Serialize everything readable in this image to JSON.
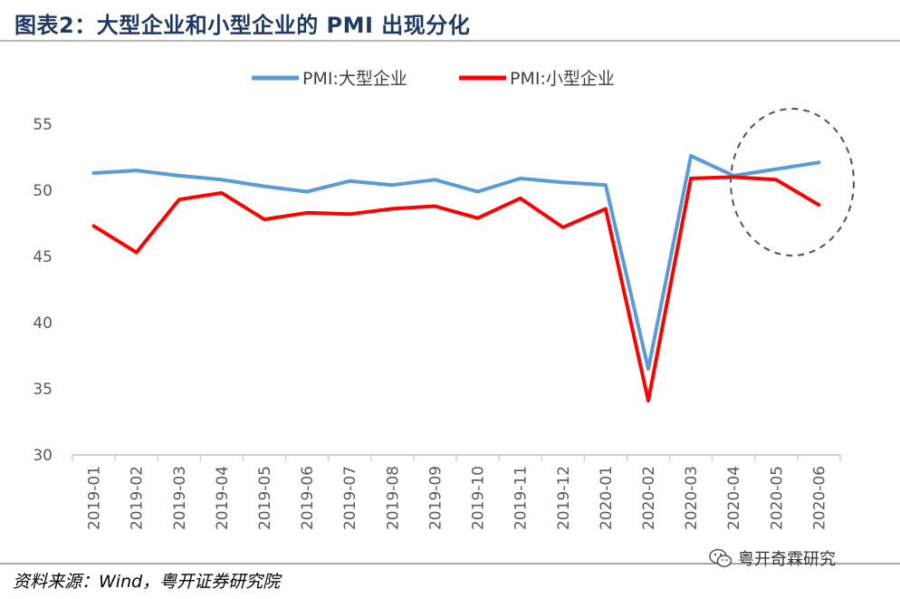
{
  "header": {
    "title": "图表2：大型企业和小型企业的 PMI 出现分化"
  },
  "footer": {
    "source": "资料来源：Wind，粤开证券研究院",
    "watermark": "粤开奇霖研究"
  },
  "icons": {
    "watermark": "wechat-icon"
  },
  "colors": {
    "large": "#5b9bd5",
    "small": "#ff0000",
    "title": "#1f3864",
    "annotation": "#44546a"
  },
  "chart_data": {
    "type": "line",
    "title": "",
    "xlabel": "",
    "ylabel": "",
    "categories": [
      "2019-01",
      "2019-02",
      "2019-03",
      "2019-04",
      "2019-05",
      "2019-06",
      "2019-07",
      "2019-08",
      "2019-09",
      "2019-10",
      "2019-11",
      "2019-12",
      "2020-01",
      "2020-02",
      "2020-03",
      "2020-04",
      "2020-05",
      "2020-06"
    ],
    "series": [
      {
        "name": "PMI:大型企业",
        "color": "#5b9bd5",
        "values": [
          51.3,
          51.5,
          51.1,
          50.8,
          50.3,
          49.9,
          50.7,
          50.4,
          50.8,
          49.9,
          50.9,
          50.6,
          50.4,
          36.5,
          52.6,
          51.1,
          51.6,
          52.1
        ]
      },
      {
        "name": "PMI:小型企业",
        "color": "#ff0000",
        "values": [
          47.3,
          45.3,
          49.3,
          49.8,
          47.8,
          48.3,
          48.2,
          48.6,
          48.8,
          47.9,
          49.4,
          47.2,
          48.6,
          34.1,
          50.9,
          51.0,
          50.8,
          48.9
        ]
      }
    ],
    "ylim": [
      30,
      55
    ],
    "yticks": [
      30,
      35,
      40,
      45,
      50,
      55
    ],
    "grid": false,
    "legend": "top-center",
    "annotation": "dashed ellipse highlighting 2020-04 to 2020-06"
  }
}
